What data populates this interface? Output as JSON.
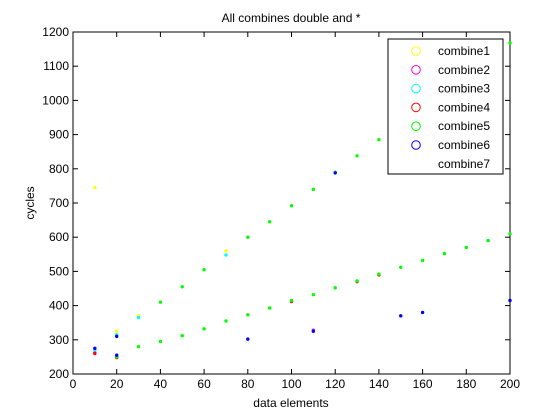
{
  "chart_data": {
    "type": "scatter",
    "title": "All combines double and *",
    "xlabel": "data elements",
    "ylabel": "cycles",
    "xlim": [
      0,
      200
    ],
    "ylim": [
      200,
      1200
    ],
    "xticks": [
      0,
      20,
      40,
      60,
      80,
      100,
      120,
      140,
      160,
      180,
      200
    ],
    "yticks": [
      200,
      300,
      400,
      500,
      600,
      700,
      800,
      900,
      1000,
      1100,
      1200
    ],
    "grid": false,
    "legend_position": "top-right",
    "series": [
      {
        "name": "combine1",
        "color": "#ffff00",
        "points": [
          [
            10,
            745
          ],
          [
            20,
            325
          ],
          [
            30,
            370
          ],
          [
            70,
            560
          ]
        ]
      },
      {
        "name": "combine2",
        "color": "#ff00ff",
        "points": [
          [
            10,
            262
          ],
          [
            20,
            250
          ],
          [
            110,
            328
          ]
        ]
      },
      {
        "name": "combine3",
        "color": "#00ffff",
        "points": [
          [
            10,
            270
          ],
          [
            20,
            315
          ],
          [
            30,
            365
          ],
          [
            70,
            548
          ]
        ]
      },
      {
        "name": "combine4",
        "color": "#ff0000",
        "points": [
          [
            10,
            260
          ],
          [
            20,
            248
          ],
          [
            100,
            412
          ],
          [
            130,
            470
          ],
          [
            140,
            490
          ]
        ]
      },
      {
        "name": "combine5",
        "color": "#00ff00",
        "points": [
          [
            20,
            250
          ],
          [
            30,
            280
          ],
          [
            40,
            410
          ],
          [
            40,
            295
          ],
          [
            50,
            455
          ],
          [
            50,
            312
          ],
          [
            60,
            505
          ],
          [
            60,
            332
          ],
          [
            70,
            355
          ],
          [
            80,
            600
          ],
          [
            80,
            373
          ],
          [
            90,
            645
          ],
          [
            90,
            393
          ],
          [
            100,
            692
          ],
          [
            100,
            415
          ],
          [
            110,
            740
          ],
          [
            110,
            432
          ],
          [
            120,
            790
          ],
          [
            120,
            452
          ],
          [
            130,
            838
          ],
          [
            130,
            472
          ],
          [
            140,
            885
          ],
          [
            140,
            492
          ],
          [
            150,
            512
          ],
          [
            160,
            532
          ],
          [
            170,
            552
          ],
          [
            180,
            570
          ],
          [
            190,
            590
          ],
          [
            200,
            1168
          ],
          [
            200,
            610
          ]
        ]
      },
      {
        "name": "combine6",
        "color": "#0000ff",
        "points": [
          [
            10,
            275
          ],
          [
            20,
            255
          ],
          [
            20,
            310
          ],
          [
            80,
            302
          ],
          [
            110,
            325
          ],
          [
            120,
            788
          ],
          [
            150,
            370
          ],
          [
            160,
            380
          ],
          [
            200,
            415
          ]
        ]
      },
      {
        "name": "combine7",
        "color": "#ffffff",
        "points": []
      }
    ]
  }
}
